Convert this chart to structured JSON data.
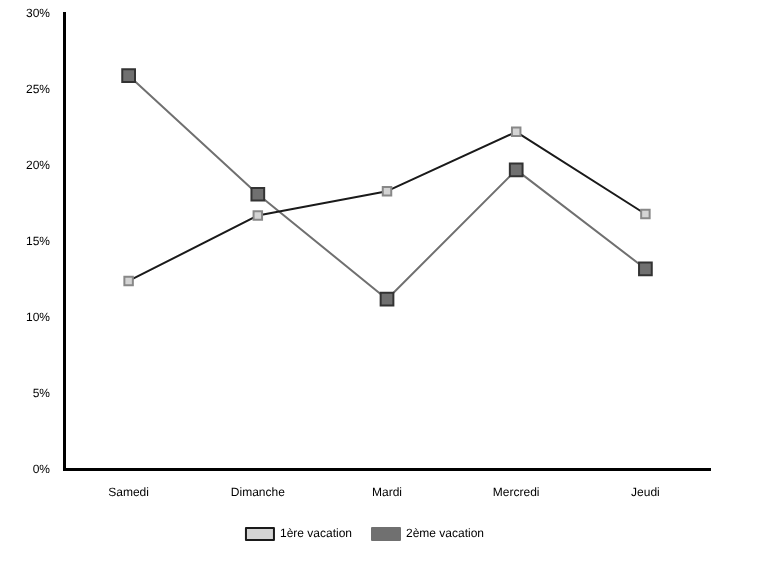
{
  "chart_data": {
    "type": "line",
    "categories": [
      "Samedi",
      "Dimanche",
      "Mardi",
      "Mercredi",
      "Jeudi"
    ],
    "series": [
      {
        "name": "1ère vacation",
        "color": "#1a1a1a",
        "values": [
          12.4,
          16.7,
          18.3,
          22.2,
          16.8
        ]
      },
      {
        "name": "2ème vacation",
        "color": "#707070",
        "values": [
          25.9,
          18.1,
          11.2,
          19.7,
          13.2
        ]
      }
    ],
    "ylim": [
      0,
      30
    ],
    "yticks": [
      {
        "value": 0,
        "label": "0%"
      },
      {
        "value": 5,
        "label": "5%"
      },
      {
        "value": 10,
        "label": "10%"
      },
      {
        "value": 15,
        "label": "15%"
      },
      {
        "value": 20,
        "label": "20%"
      },
      {
        "value": 25,
        "label": "25%"
      },
      {
        "value": 30,
        "label": "30%"
      }
    ],
    "grid": false,
    "legend": "bottom",
    "marker": "square",
    "line_style": "solid"
  }
}
